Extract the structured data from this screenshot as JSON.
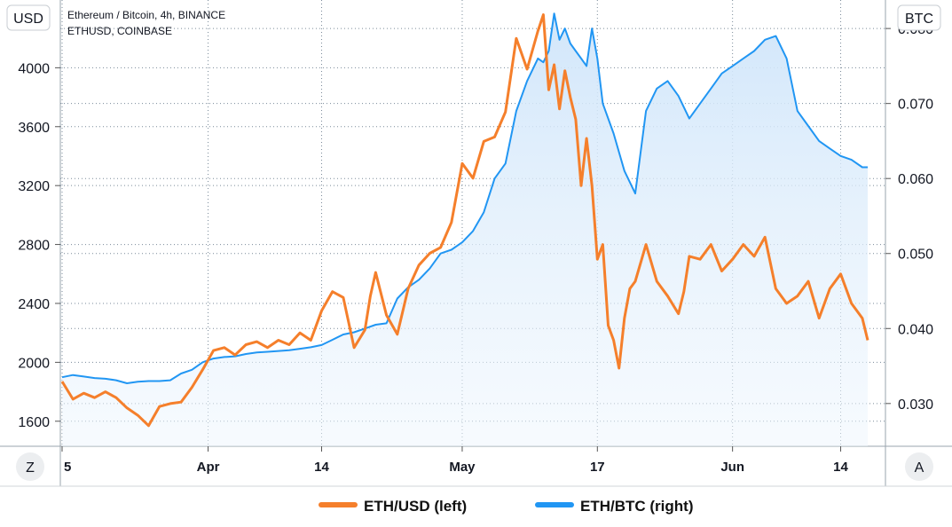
{
  "header": {
    "title": "Ethereum / Bitcoin, 4h, BINANCE",
    "subtitle": "ETHUSD, COINBASE"
  },
  "left_unit": "USD",
  "right_unit": "BTC",
  "corner_left": "Z",
  "corner_right": "A",
  "colors": {
    "eth_usd": "#F57F2B",
    "eth_btc": "#2196F3",
    "fill_top": "#D7EBFB",
    "grid": "#7A8A99"
  },
  "chart_data": {
    "type": "line",
    "x_ticks": [
      "5",
      "Apr",
      "14",
      "May",
      "17",
      "Jun",
      "14"
    ],
    "x_tick_positions": [
      0,
      27,
      48,
      74,
      99,
      124,
      144
    ],
    "xlim": [
      0,
      149
    ],
    "y_left": {
      "label": "USD",
      "ticks": [
        1600,
        2000,
        2400,
        2800,
        3200,
        3600,
        4000
      ],
      "lim": [
        1430,
        4460
      ]
    },
    "y_right": {
      "label": "BTC",
      "ticks": [
        "0.030",
        "0.040",
        "0.050",
        "0.060",
        "0.070",
        "0.080"
      ],
      "lim": [
        0.0243,
        0.0838
      ]
    },
    "legend": [
      "ETH/USD (left)",
      "ETH/BTC (right)"
    ],
    "legend_position": "bottom",
    "grid": true,
    "series": [
      {
        "name": "ETH/USD (left)",
        "axis": "left",
        "x": [
          0,
          2,
          4,
          6,
          8,
          10,
          12,
          14,
          16,
          18,
          20,
          22,
          24,
          26,
          28,
          30,
          32,
          34,
          36,
          38,
          40,
          42,
          44,
          46,
          48,
          50,
          52,
          54,
          56,
          57,
          58,
          60,
          62,
          64,
          66,
          68,
          70,
          72,
          74,
          76,
          78,
          80,
          82,
          84,
          86,
          88,
          89,
          90,
          91,
          92,
          93,
          94,
          95,
          96,
          97,
          98,
          99,
          100,
          101,
          102,
          103,
          104,
          105,
          106,
          108,
          110,
          112,
          114,
          115,
          116,
          118,
          120,
          122,
          124,
          126,
          128,
          130,
          132,
          134,
          136,
          138,
          140,
          142,
          144,
          146,
          148,
          149
        ],
        "values": [
          1870,
          1750,
          1790,
          1760,
          1800,
          1760,
          1690,
          1640,
          1570,
          1700,
          1720,
          1730,
          1830,
          1950,
          2080,
          2100,
          2050,
          2120,
          2140,
          2100,
          2150,
          2120,
          2200,
          2150,
          2350,
          2480,
          2440,
          2100,
          2220,
          2450,
          2610,
          2320,
          2190,
          2500,
          2660,
          2740,
          2780,
          2950,
          3350,
          3250,
          3500,
          3530,
          3700,
          4200,
          3990,
          4250,
          4360,
          3850,
          4020,
          3720,
          3980,
          3800,
          3650,
          3200,
          3520,
          3200,
          2700,
          2800,
          2250,
          2150,
          1960,
          2300,
          2500,
          2550,
          2800,
          2550,
          2450,
          2330,
          2480,
          2720,
          2700,
          2800,
          2620,
          2700,
          2800,
          2720,
          2850,
          2500,
          2400,
          2450,
          2550,
          2300,
          2500,
          2600,
          2400,
          2300,
          2150
        ]
      },
      {
        "name": "ETH/BTC (right)",
        "axis": "right",
        "x": [
          0,
          2,
          4,
          6,
          8,
          10,
          12,
          14,
          16,
          18,
          20,
          22,
          24,
          26,
          28,
          30,
          32,
          34,
          36,
          38,
          40,
          42,
          44,
          46,
          48,
          50,
          52,
          54,
          56,
          58,
          60,
          62,
          64,
          66,
          68,
          70,
          72,
          74,
          76,
          78,
          80,
          82,
          84,
          86,
          88,
          89,
          90,
          91,
          92,
          93,
          94,
          95,
          96,
          97,
          98,
          99,
          100,
          102,
          104,
          106,
          108,
          110,
          112,
          114,
          116,
          118,
          120,
          122,
          124,
          126,
          128,
          130,
          132,
          134,
          136,
          138,
          140,
          142,
          144,
          146,
          148,
          149
        ],
        "values": [
          0.0335,
          0.0338,
          0.0336,
          0.0334,
          0.0333,
          0.0331,
          0.0327,
          0.0329,
          0.033,
          0.033,
          0.0331,
          0.034,
          0.0345,
          0.0355,
          0.036,
          0.0362,
          0.0363,
          0.0366,
          0.0368,
          0.0369,
          0.037,
          0.0371,
          0.0373,
          0.0375,
          0.0378,
          0.0385,
          0.0392,
          0.0395,
          0.04,
          0.0405,
          0.0407,
          0.044,
          0.0455,
          0.0465,
          0.048,
          0.05,
          0.0505,
          0.0515,
          0.053,
          0.0555,
          0.06,
          0.062,
          0.069,
          0.073,
          0.076,
          0.0755,
          0.077,
          0.082,
          0.0785,
          0.08,
          0.078,
          0.077,
          0.076,
          0.075,
          0.08,
          0.076,
          0.07,
          0.066,
          0.061,
          0.058,
          0.069,
          0.072,
          0.073,
          0.071,
          0.068,
          0.07,
          0.072,
          0.074,
          0.075,
          0.076,
          0.077,
          0.0785,
          0.079,
          0.076,
          0.069,
          0.067,
          0.065,
          0.064,
          0.063,
          0.0625,
          0.0615,
          0.0615
        ]
      }
    ]
  }
}
